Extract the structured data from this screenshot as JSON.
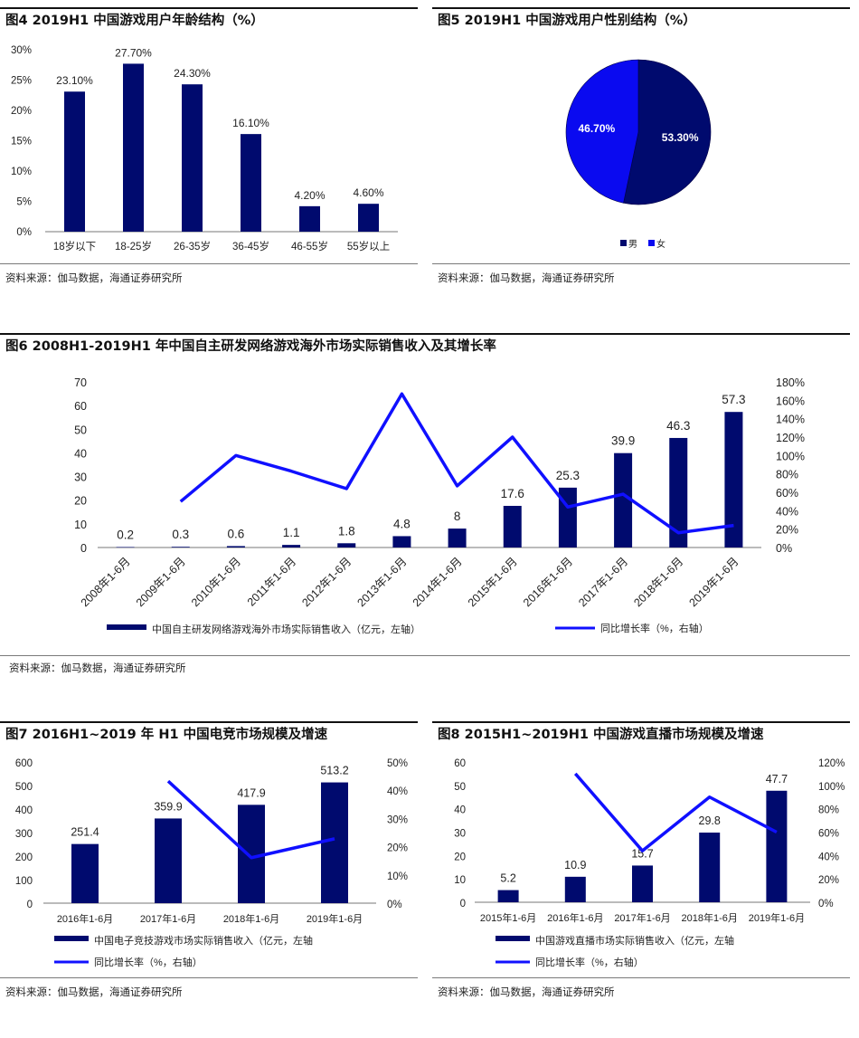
{
  "colors": {
    "navy": "#000a6e",
    "blue": "#1010ff",
    "female": "#0a0af0"
  },
  "fig4": {
    "title": "图4  2019H1 中国游戏用户年龄结构（%）",
    "source": "资料来源：伽马数据，海通证券研究所"
  },
  "fig5": {
    "title": "图5  2019H1 中国游戏用户性别结构（%）",
    "source": "资料来源：伽马数据，海通证券研究所"
  },
  "fig6": {
    "title": "图6  2008H1-2019H1 年中国自主研发网络游戏海外市场实际销售收入及其增长率",
    "source": "资料来源：伽马数据，海通证券研究所"
  },
  "fig7": {
    "title": "图7  2016H1~2019 年 H1 中国电竞市场规模及增速",
    "source": "资料来源：伽马数据，海通证券研究所"
  },
  "fig8": {
    "title": "图8  2015H1~2019H1 中国游戏直播市场规模及增速",
    "source": "资料来源：伽马数据，海通证券研究所"
  },
  "chart_data": [
    {
      "id": "fig4",
      "type": "bar",
      "categories": [
        "18岁以下",
        "18-25岁",
        "26-35岁",
        "36-45岁",
        "46-55岁",
        "55岁以上"
      ],
      "values": [
        23.1,
        27.7,
        24.3,
        16.1,
        4.2,
        4.6
      ],
      "labels": [
        "23.10%",
        "27.70%",
        "24.30%",
        "16.10%",
        "4.20%",
        "4.60%"
      ],
      "ylim": [
        0,
        30
      ],
      "yticks": [
        "0%",
        "5%",
        "10%",
        "15%",
        "20%",
        "25%",
        "30%"
      ]
    },
    {
      "id": "fig5",
      "type": "pie",
      "slices": [
        {
          "name": "男",
          "value": 53.3,
          "label": "53.30%"
        },
        {
          "name": "女",
          "value": 46.7,
          "label": "46.70%"
        }
      ]
    },
    {
      "id": "fig6",
      "type": "bar",
      "categories": [
        "2008年1-6月",
        "2009年1-6月",
        "2010年1-6月",
        "2011年1-6月",
        "2012年1-6月",
        "2013年1-6月",
        "2014年1-6月",
        "2015年1-6月",
        "2016年1-6月",
        "2017年1-6月",
        "2018年1-6月",
        "2019年1-6月"
      ],
      "series": [
        {
          "name": "中国自主研发网络游戏海外市场实际销售收入（亿元，左轴）",
          "kind": "bar",
          "values": [
            0.2,
            0.3,
            0.6,
            1.1,
            1.8,
            4.8,
            8,
            17.6,
            25.3,
            39.9,
            46.3,
            57.3
          ],
          "labels": [
            "0.2",
            "0.3",
            "0.6",
            "1.1",
            "1.8",
            "4.8",
            "8",
            "17.6",
            "25.3",
            "39.9",
            "46.3",
            "57.3"
          ]
        },
        {
          "name": "同比增长率（%，右轴）",
          "kind": "line",
          "values": [
            null,
            50,
            100,
            83,
            64,
            167,
            67,
            120,
            44,
            58,
            16,
            24
          ]
        }
      ],
      "ylim_left": [
        0,
        70
      ],
      "ylim_right": [
        0,
        180
      ],
      "yticks_left": [
        "0",
        "10",
        "20",
        "30",
        "40",
        "50",
        "60",
        "70"
      ],
      "yticks_right": [
        "0%",
        "20%",
        "40%",
        "60%",
        "80%",
        "100%",
        "120%",
        "140%",
        "160%",
        "180%"
      ]
    },
    {
      "id": "fig7",
      "type": "bar",
      "categories": [
        "2016年1-6月",
        "2017年1-6月",
        "2018年1-6月",
        "2019年1-6月"
      ],
      "series": [
        {
          "name": "中国电子竞技游戏市场实际销售收入（亿元，左轴",
          "kind": "bar",
          "values": [
            251.4,
            359.9,
            417.9,
            513.2
          ],
          "labels": [
            "251.4",
            "359.9",
            "417.9",
            "513.2"
          ]
        },
        {
          "name": "同比增长率（%，右轴）",
          "kind": "line",
          "values": [
            null,
            43.2,
            16.1,
            22.8
          ]
        }
      ],
      "ylim_left": [
        0,
        600
      ],
      "ylim_right": [
        0,
        50
      ],
      "yticks_left": [
        "0",
        "100",
        "200",
        "300",
        "400",
        "500",
        "600"
      ],
      "yticks_right": [
        "0%",
        "10%",
        "20%",
        "30%",
        "40%",
        "50%"
      ]
    },
    {
      "id": "fig8",
      "type": "bar",
      "categories": [
        "2015年1-6月",
        "2016年1-6月",
        "2017年1-6月",
        "2018年1-6月",
        "2019年1-6月"
      ],
      "series": [
        {
          "name": "中国游戏直播市场实际销售收入（亿元，左轴",
          "kind": "bar",
          "values": [
            5.2,
            10.9,
            15.7,
            29.8,
            47.7
          ],
          "labels": [
            "5.2",
            "10.9",
            "15.7",
            "29.8",
            "47.7"
          ]
        },
        {
          "name": "同比增长率（%，右轴）",
          "kind": "line",
          "values": [
            null,
            110,
            44,
            90,
            60
          ]
        }
      ],
      "ylim_left": [
        0,
        60
      ],
      "ylim_right": [
        0,
        120
      ],
      "yticks_left": [
        "0",
        "10",
        "20",
        "30",
        "40",
        "50",
        "60"
      ],
      "yticks_right": [
        "0%",
        "20%",
        "40%",
        "60%",
        "80%",
        "100%",
        "120%"
      ]
    }
  ]
}
